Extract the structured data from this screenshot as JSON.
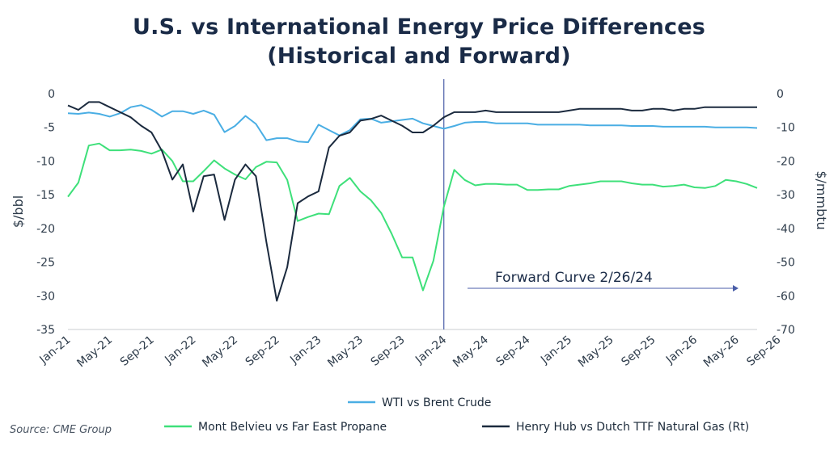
{
  "chart_data": {
    "type": "line",
    "title_line1": "U.S. vs International Energy Price Differences",
    "title_line2": "(Historical and Forward)",
    "ylabel": "$/bbl",
    "y2label": "$/mmbtu",
    "ylim": [
      -35,
      0
    ],
    "y2lim": [
      -70,
      0
    ],
    "yticks": [
      0,
      -5,
      -10,
      -15,
      -20,
      -25,
      -30,
      -35
    ],
    "y2ticks": [
      0,
      -10,
      -20,
      -30,
      -40,
      -50,
      -60,
      -70
    ],
    "xticks": [
      "Jan-21",
      "May-21",
      "Sep-21",
      "Jan-22",
      "May-22",
      "Sep-22",
      "Jan-23",
      "May-23",
      "Sep-23",
      "Jan-24",
      "May-24",
      "Sep-24",
      "Jan-25",
      "May-25",
      "Sep-25",
      "Jan-26",
      "May-26",
      "Sep-26"
    ],
    "grid": false,
    "legend_position": "bottom",
    "source": "Source: CME Group",
    "annotation": {
      "text": "Forward Curve 2/26/24",
      "vline_at_month": 36
    },
    "series": [
      {
        "name": "WTI vs Brent Crude",
        "axis": "left",
        "color": "#4aaee4",
        "values": [
          -2.9,
          -3.0,
          -2.8,
          -3.0,
          -3.4,
          -2.9,
          -2.0,
          -1.7,
          -2.4,
          -3.4,
          -2.6,
          -2.6,
          -3.0,
          -2.5,
          -3.1,
          -5.7,
          -4.8,
          -3.3,
          -4.5,
          -6.9,
          -6.6,
          -6.6,
          -7.1,
          -7.2,
          -4.6,
          -5.4,
          -6.2,
          -5.4,
          -3.8,
          -3.7,
          -4.3,
          -4.1,
          -3.9,
          -3.7,
          -4.4,
          -4.8,
          -5.2,
          -4.8,
          -4.3,
          -4.2,
          -4.2,
          -4.4,
          -4.4,
          -4.4,
          -4.4,
          -4.6,
          -4.6,
          -4.6,
          -4.6,
          -4.6,
          -4.7,
          -4.7,
          -4.7,
          -4.7,
          -4.8,
          -4.8,
          -4.8,
          -4.9,
          -4.9,
          -4.9,
          -4.9,
          -4.9,
          -5.0,
          -5.0,
          -5.0,
          -5.0,
          -5.1
        ]
      },
      {
        "name": "Mont Belvieu vs Far East Propane",
        "axis": "left",
        "color": "#3ee07a",
        "values": [
          -15.3,
          -13.2,
          -7.7,
          -7.4,
          -8.4,
          -8.4,
          -8.3,
          -8.5,
          -8.9,
          -8.3,
          -10.0,
          -13.0,
          -13.0,
          -11.5,
          -9.9,
          -11.1,
          -12.0,
          -12.7,
          -10.9,
          -10.1,
          -10.2,
          -12.8,
          -18.9,
          -18.3,
          -17.8,
          -17.9,
          -13.7,
          -12.5,
          -14.5,
          -15.8,
          -17.7,
          -20.8,
          -24.3,
          -24.3,
          -29.2,
          -24.8,
          -16.8,
          -11.3,
          -12.8,
          -13.6,
          -13.4,
          -13.4,
          -13.5,
          -13.5,
          -14.3,
          -14.3,
          -14.2,
          -14.2,
          -13.7,
          -13.5,
          -13.3,
          -13.0,
          -13.0,
          -13.0,
          -13.3,
          -13.5,
          -13.5,
          -13.8,
          -13.7,
          -13.5,
          -13.9,
          -14.0,
          -13.7,
          -12.8,
          -13.0,
          -13.4,
          -14.0
        ]
      },
      {
        "name": "Henry Hub vs Dutch TTF Natural Gas (Rt)",
        "axis": "right",
        "color": "#1b2a3e",
        "values": [
          -3.5,
          -4.8,
          -2.5,
          -2.5,
          -4.0,
          -5.5,
          -7.0,
          -9.5,
          -11.5,
          -17.0,
          -25.5,
          -21.0,
          -35.0,
          -24.5,
          -24.0,
          -37.5,
          -25.5,
          -21.0,
          -24.5,
          -44.0,
          -61.5,
          -51.5,
          -32.5,
          -30.5,
          -29.0,
          -16.0,
          -12.5,
          -11.5,
          -8.0,
          -7.5,
          -6.5,
          -8.0,
          -9.5,
          -11.5,
          -11.5,
          -9.5,
          -7.0,
          -5.5,
          -5.5,
          -5.5,
          -5.0,
          -5.5,
          -5.5,
          -5.5,
          -5.5,
          -5.5,
          -5.5,
          -5.5,
          -5.0,
          -4.5,
          -4.5,
          -4.5,
          -4.5,
          -4.5,
          -5.0,
          -5.0,
          -4.5,
          -4.5,
          -5.0,
          -4.5,
          -4.5,
          -4.0,
          -4.0,
          -4.0,
          -4.0,
          -4.0,
          -4.0
        ]
      }
    ]
  }
}
